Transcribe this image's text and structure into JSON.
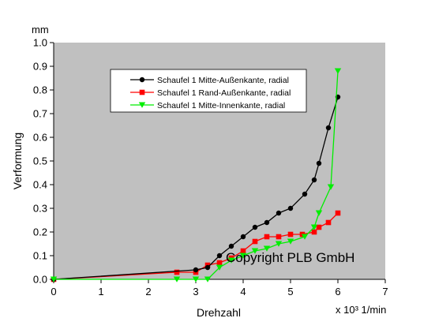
{
  "chart_data": {
    "type": "line",
    "title": "",
    "xlabel": "Drehzahl",
    "x_unit": "x 10³ 1/min",
    "ylabel": "Verformung",
    "y_unit": "mm",
    "xlim": [
      0,
      7
    ],
    "ylim": [
      0,
      1.0
    ],
    "x_ticks": [
      "0",
      "1",
      "2",
      "3",
      "4",
      "5",
      "6",
      "7"
    ],
    "y_ticks": [
      "0.0",
      "0.1",
      "0.2",
      "0.3",
      "0.4",
      "0.5",
      "0.6",
      "0.7",
      "0.8",
      "0.9",
      "1.0"
    ],
    "background": "#c0c0c0",
    "grid": false,
    "legend_position": "top-center",
    "annotation": "Copyright PLB  GmbH",
    "series": [
      {
        "name": "Schaufel 1 Mitte-Außenkante, radial",
        "color": "#000000",
        "marker": "circle",
        "x": [
          0,
          3.0,
          3.25,
          3.5,
          3.75,
          4.0,
          4.25,
          4.5,
          4.75,
          5.0,
          5.3,
          5.5,
          5.6,
          5.8,
          6.0
        ],
        "y": [
          0,
          0.04,
          0.05,
          0.1,
          0.14,
          0.18,
          0.22,
          0.24,
          0.28,
          0.3,
          0.36,
          0.42,
          0.49,
          0.64,
          0.77
        ]
      },
      {
        "name": "Schaufel 1 Rand-Außenkante, radial",
        "color": "#ff0000",
        "marker": "square",
        "x": [
          0,
          2.6,
          3.0,
          3.25,
          3.5,
          3.75,
          4.0,
          4.25,
          4.5,
          4.75,
          5.0,
          5.25,
          5.5,
          5.6,
          5.8,
          6.0
        ],
        "y": [
          0,
          0.03,
          0.03,
          0.06,
          0.07,
          0.09,
          0.12,
          0.16,
          0.18,
          0.18,
          0.19,
          0.19,
          0.2,
          0.22,
          0.24,
          0.28
        ]
      },
      {
        "name": "Schaufel 1 Mitte-Innenkante, radial",
        "color": "#00ee00",
        "marker": "triangle-down",
        "x": [
          0,
          2.6,
          3.0,
          3.25,
          3.5,
          3.75,
          4.0,
          4.25,
          4.5,
          4.75,
          5.0,
          5.3,
          5.5,
          5.6,
          5.85,
          6.0
        ],
        "y": [
          0,
          0,
          0,
          0,
          0.05,
          0.08,
          0.1,
          0.12,
          0.13,
          0.15,
          0.16,
          0.18,
          0.22,
          0.28,
          0.39,
          0.88
        ]
      }
    ]
  }
}
